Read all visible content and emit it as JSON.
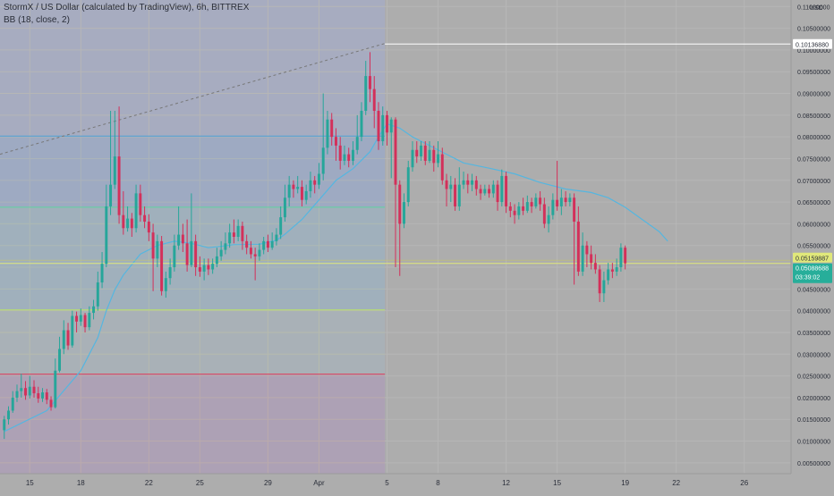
{
  "legend": {
    "title": "StormX / US Dollar (calculated by TradingView), 6h, BITTREX",
    "indicator": "BB (18, close, 2)"
  },
  "price_axis": {
    "currency": "USD"
  },
  "colors": {
    "background": "#adadad",
    "left_region": "#a7acc0",
    "up_candle": "#26a69a",
    "down_candle": "#d3305a",
    "basis_line": "#55b6e0",
    "axis_text": "#2a2e39",
    "grid": "#b6b6b6",
    "fib_levels": [
      "#4f9fd8",
      "#5fd3a0",
      "#b7e26a",
      "#e0415b"
    ],
    "current_price_label": "#e0e87a",
    "bb_price_label": "#27ae9a",
    "highlight_label": "#ffffff"
  },
  "chart_data": {
    "type": "candlestick",
    "title": "StormX / US Dollar (calculated by TradingView), 6h, BITTREX",
    "xlabel": "",
    "ylabel": "USD",
    "ylim": [
      0.0025,
      0.1115
    ],
    "grid": true,
    "legend_placement": "top-left",
    "y_ticks": [
      "0.00500000",
      "0.01000000",
      "0.01500000",
      "0.02000000",
      "0.02500000",
      "0.03000000",
      "0.03500000",
      "0.04000000",
      "0.04500000",
      "0.05000000",
      "0.05500000",
      "0.06000000",
      "0.06500000",
      "0.07000000",
      "0.07500000",
      "0.08000000",
      "0.08500000",
      "0.09000000",
      "0.09500000",
      "0.10000000",
      "0.10500000",
      "0.11000000"
    ],
    "x_ticks": [
      {
        "label": "15",
        "i": 6
      },
      {
        "label": "18",
        "i": 18
      },
      {
        "label": "22",
        "i": 34
      },
      {
        "label": "25",
        "i": 46
      },
      {
        "label": "29",
        "i": 62
      },
      {
        "label": "Apr",
        "i": 74
      },
      {
        "label": "5",
        "i": 90
      },
      {
        "label": "8",
        "i": 102
      },
      {
        "label": "12",
        "i": 118
      },
      {
        "label": "15",
        "i": 130
      },
      {
        "label": "19",
        "i": 146
      },
      {
        "label": "22",
        "i": 158
      },
      {
        "label": "26",
        "i": 174
      }
    ],
    "x_range": [
      -1,
      185
    ],
    "split_index": 89.5,
    "fib_levels": [
      0.0802,
      0.0638,
      0.0402,
      0.0254
    ],
    "trend_line": {
      "from": {
        "i": -1,
        "y": 0.076
      },
      "to": {
        "i": 89.5,
        "y": 0.1015
      }
    },
    "highlight_price": {
      "label": "0.10136880",
      "value": 0.10137
    },
    "bb_label": {
      "label": "0.05159887",
      "value": 0.0516
    },
    "current_price": {
      "label": "0.05088688",
      "value": 0.05089,
      "countdown": "03:39:02"
    },
    "candles": [
      [
        0.0125,
        0.015,
        0.0158,
        0.0105
      ],
      [
        0.015,
        0.017,
        0.018,
        0.0138
      ],
      [
        0.017,
        0.02,
        0.0215,
        0.0165
      ],
      [
        0.02,
        0.0215,
        0.023,
        0.019
      ],
      [
        0.0215,
        0.0222,
        0.0255,
        0.02
      ],
      [
        0.0222,
        0.0205,
        0.0238,
        0.0195
      ],
      [
        0.0205,
        0.0225,
        0.025,
        0.0198
      ],
      [
        0.0225,
        0.021,
        0.024,
        0.02
      ],
      [
        0.021,
        0.0198,
        0.0225,
        0.0188
      ],
      [
        0.0198,
        0.0212,
        0.0222,
        0.019
      ],
      [
        0.0212,
        0.0195,
        0.022,
        0.0185
      ],
      [
        0.0195,
        0.0178,
        0.0203,
        0.017
      ],
      [
        0.0178,
        0.0262,
        0.029,
        0.0175
      ],
      [
        0.0262,
        0.0312,
        0.034,
        0.0258
      ],
      [
        0.0312,
        0.0355,
        0.0378,
        0.03
      ],
      [
        0.0355,
        0.032,
        0.0372,
        0.031
      ],
      [
        0.032,
        0.0388,
        0.04,
        0.0315
      ],
      [
        0.0388,
        0.0375,
        0.0398,
        0.035
      ],
      [
        0.0375,
        0.039,
        0.0405,
        0.0365
      ],
      [
        0.039,
        0.0362,
        0.0395,
        0.035
      ],
      [
        0.0362,
        0.0395,
        0.041,
        0.0355
      ],
      [
        0.0395,
        0.041,
        0.0425,
        0.038
      ],
      [
        0.041,
        0.0465,
        0.049,
        0.04
      ],
      [
        0.0465,
        0.0508,
        0.0535,
        0.0452
      ],
      [
        0.0508,
        0.064,
        0.069,
        0.05
      ],
      [
        0.064,
        0.069,
        0.086,
        0.062
      ],
      [
        0.069,
        0.0755,
        0.086,
        0.068
      ],
      [
        0.0755,
        0.062,
        0.087,
        0.06
      ],
      [
        0.062,
        0.059,
        0.0675,
        0.0575
      ],
      [
        0.059,
        0.0612,
        0.064,
        0.0582
      ],
      [
        0.0612,
        0.059,
        0.0625,
        0.057
      ],
      [
        0.059,
        0.067,
        0.069,
        0.058
      ],
      [
        0.067,
        0.062,
        0.069,
        0.0605
      ],
      [
        0.062,
        0.0605,
        0.064,
        0.059
      ],
      [
        0.0605,
        0.058,
        0.0622,
        0.056
      ],
      [
        0.058,
        0.052,
        0.06,
        0.0445
      ],
      [
        0.052,
        0.056,
        0.0575,
        0.05
      ],
      [
        0.056,
        0.0445,
        0.0572,
        0.0435
      ],
      [
        0.0445,
        0.0475,
        0.049,
        0.043
      ],
      [
        0.0475,
        0.05,
        0.052,
        0.046
      ],
      [
        0.05,
        0.055,
        0.0575,
        0.049
      ],
      [
        0.055,
        0.0575,
        0.064,
        0.054
      ],
      [
        0.0575,
        0.0555,
        0.06,
        0.0535
      ],
      [
        0.0555,
        0.0505,
        0.061,
        0.049
      ],
      [
        0.0505,
        0.056,
        0.067,
        0.05
      ],
      [
        0.056,
        0.05,
        0.0575,
        0.048
      ],
      [
        0.05,
        0.049,
        0.0525,
        0.0478
      ],
      [
        0.049,
        0.0505,
        0.052,
        0.047
      ],
      [
        0.0505,
        0.0495,
        0.052,
        0.0482
      ],
      [
        0.0495,
        0.0508,
        0.052,
        0.0485
      ],
      [
        0.0508,
        0.0525,
        0.0545,
        0.05
      ],
      [
        0.0525,
        0.054,
        0.056,
        0.0515
      ],
      [
        0.054,
        0.0555,
        0.058,
        0.053
      ],
      [
        0.0555,
        0.058,
        0.06,
        0.0545
      ],
      [
        0.058,
        0.057,
        0.061,
        0.0555
      ],
      [
        0.057,
        0.0595,
        0.061,
        0.056
      ],
      [
        0.0595,
        0.056,
        0.0605,
        0.054
      ],
      [
        0.056,
        0.0545,
        0.0575,
        0.053
      ],
      [
        0.0545,
        0.053,
        0.056,
        0.052
      ],
      [
        0.053,
        0.0525,
        0.0545,
        0.047
      ],
      [
        0.0525,
        0.054,
        0.0555,
        0.0515
      ],
      [
        0.054,
        0.056,
        0.057,
        0.053
      ],
      [
        0.056,
        0.0545,
        0.0575,
        0.0535
      ],
      [
        0.0545,
        0.056,
        0.058,
        0.054
      ],
      [
        0.056,
        0.0575,
        0.059,
        0.055
      ],
      [
        0.0575,
        0.0615,
        0.064,
        0.0565
      ],
      [
        0.0615,
        0.066,
        0.069,
        0.0605
      ],
      [
        0.066,
        0.069,
        0.071,
        0.064
      ],
      [
        0.069,
        0.068,
        0.07,
        0.066
      ],
      [
        0.068,
        0.0685,
        0.071,
        0.067
      ],
      [
        0.0685,
        0.0655,
        0.07,
        0.064
      ],
      [
        0.0655,
        0.0675,
        0.069,
        0.0645
      ],
      [
        0.0675,
        0.07,
        0.072,
        0.066
      ],
      [
        0.07,
        0.069,
        0.071,
        0.067
      ],
      [
        0.069,
        0.0715,
        0.074,
        0.068
      ],
      [
        0.0715,
        0.0775,
        0.09,
        0.07
      ],
      [
        0.0775,
        0.084,
        0.086,
        0.076
      ],
      [
        0.084,
        0.08,
        0.0855,
        0.078
      ],
      [
        0.08,
        0.078,
        0.082,
        0.0745
      ],
      [
        0.078,
        0.0745,
        0.08,
        0.0725
      ],
      [
        0.0745,
        0.076,
        0.078,
        0.0735
      ],
      [
        0.076,
        0.0745,
        0.0775,
        0.073
      ],
      [
        0.0745,
        0.077,
        0.079,
        0.0735
      ],
      [
        0.077,
        0.08,
        0.085,
        0.076
      ],
      [
        0.08,
        0.086,
        0.088,
        0.079
      ],
      [
        0.086,
        0.094,
        0.0975,
        0.085
      ],
      [
        0.094,
        0.091,
        0.0995,
        0.088
      ],
      [
        0.091,
        0.086,
        0.094,
        0.082
      ],
      [
        0.086,
        0.079,
        0.088,
        0.077
      ],
      [
        0.079,
        0.085,
        0.087,
        0.078
      ],
      [
        0.085,
        0.081,
        0.086,
        0.078
      ],
      [
        0.081,
        0.084,
        0.0845,
        0.0705
      ],
      [
        0.084,
        0.069,
        0.0845,
        0.05
      ],
      [
        0.069,
        0.06,
        0.07,
        0.048
      ],
      [
        0.06,
        0.065,
        0.067,
        0.059
      ],
      [
        0.065,
        0.073,
        0.0745,
        0.064
      ],
      [
        0.073,
        0.077,
        0.079,
        0.072
      ],
      [
        0.077,
        0.0755,
        0.079,
        0.074
      ],
      [
        0.0755,
        0.078,
        0.079,
        0.0745
      ],
      [
        0.078,
        0.0745,
        0.079,
        0.0735
      ],
      [
        0.0745,
        0.077,
        0.079,
        0.074
      ],
      [
        0.077,
        0.074,
        0.078,
        0.072
      ],
      [
        0.074,
        0.076,
        0.079,
        0.073
      ],
      [
        0.076,
        0.07,
        0.0775,
        0.069
      ],
      [
        0.07,
        0.068,
        0.0715,
        0.064
      ],
      [
        0.068,
        0.069,
        0.071,
        0.065
      ],
      [
        0.069,
        0.064,
        0.0705,
        0.063
      ],
      [
        0.064,
        0.069,
        0.073,
        0.063
      ],
      [
        0.069,
        0.07,
        0.072,
        0.068
      ],
      [
        0.07,
        0.069,
        0.0715,
        0.067
      ],
      [
        0.069,
        0.07,
        0.0715,
        0.0675
      ],
      [
        0.07,
        0.068,
        0.071,
        0.0665
      ],
      [
        0.068,
        0.067,
        0.069,
        0.0655
      ],
      [
        0.067,
        0.068,
        0.069,
        0.0665
      ],
      [
        0.068,
        0.067,
        0.069,
        0.066
      ],
      [
        0.067,
        0.069,
        0.07,
        0.066
      ],
      [
        0.069,
        0.065,
        0.07,
        0.063
      ],
      [
        0.065,
        0.071,
        0.0725,
        0.064
      ],
      [
        0.071,
        0.064,
        0.072,
        0.0625
      ],
      [
        0.064,
        0.063,
        0.065,
        0.0615
      ],
      [
        0.063,
        0.062,
        0.0645,
        0.06
      ],
      [
        0.062,
        0.064,
        0.065,
        0.061
      ],
      [
        0.064,
        0.063,
        0.066,
        0.062
      ],
      [
        0.063,
        0.065,
        0.0665,
        0.0625
      ],
      [
        0.065,
        0.064,
        0.066,
        0.0625
      ],
      [
        0.064,
        0.066,
        0.067,
        0.0635
      ],
      [
        0.066,
        0.0645,
        0.0675,
        0.063
      ],
      [
        0.0645,
        0.06,
        0.066,
        0.059
      ],
      [
        0.06,
        0.062,
        0.064,
        0.058
      ],
      [
        0.062,
        0.0655,
        0.067,
        0.061
      ],
      [
        0.0655,
        0.064,
        0.0745,
        0.063
      ],
      [
        0.064,
        0.066,
        0.068,
        0.062
      ],
      [
        0.066,
        0.065,
        0.0675,
        0.064
      ],
      [
        0.065,
        0.066,
        0.067,
        0.064
      ],
      [
        0.066,
        0.0605,
        0.067,
        0.046
      ],
      [
        0.0605,
        0.049,
        0.064,
        0.048
      ],
      [
        0.049,
        0.055,
        0.058,
        0.048
      ],
      [
        0.055,
        0.053,
        0.056,
        0.05
      ],
      [
        0.053,
        0.051,
        0.055,
        0.0495
      ],
      [
        0.051,
        0.0495,
        0.053,
        0.0485
      ],
      [
        0.0495,
        0.044,
        0.0505,
        0.042
      ],
      [
        0.044,
        0.047,
        0.049,
        0.042
      ],
      [
        0.047,
        0.0495,
        0.051,
        0.046
      ],
      [
        0.0495,
        0.049,
        0.051,
        0.0475
      ],
      [
        0.049,
        0.05,
        0.052,
        0.048
      ],
      [
        0.05,
        0.0545,
        0.0555,
        0.049
      ],
      [
        0.0545,
        0.0509,
        0.055,
        0.0495
      ]
    ],
    "bb_basis": [
      [
        0,
        0.0122
      ],
      [
        10,
        0.017
      ],
      [
        18,
        0.0262
      ],
      [
        22,
        0.0338
      ],
      [
        24,
        0.04
      ],
      [
        26,
        0.0448
      ],
      [
        28,
        0.0482
      ],
      [
        32,
        0.053
      ],
      [
        36,
        0.055
      ],
      [
        40,
        0.056
      ],
      [
        44,
        0.0555
      ],
      [
        48,
        0.0545
      ],
      [
        54,
        0.0552
      ],
      [
        60,
        0.0553
      ],
      [
        64,
        0.0562
      ],
      [
        66,
        0.0576
      ],
      [
        70,
        0.061
      ],
      [
        74,
        0.0655
      ],
      [
        78,
        0.07
      ],
      [
        82,
        0.0727
      ],
      [
        86,
        0.0766
      ],
      [
        88,
        0.08
      ],
      [
        90,
        0.083
      ],
      [
        93,
        0.082
      ],
      [
        96,
        0.08
      ],
      [
        100,
        0.078
      ],
      [
        104,
        0.076
      ],
      [
        108,
        0.074
      ],
      [
        114,
        0.0728
      ],
      [
        120,
        0.0715
      ],
      [
        126,
        0.0695
      ],
      [
        132,
        0.068
      ],
      [
        138,
        0.0672
      ],
      [
        142,
        0.066
      ],
      [
        146,
        0.0638
      ],
      [
        150,
        0.061
      ],
      [
        154,
        0.0582
      ],
      [
        156,
        0.056
      ]
    ]
  }
}
